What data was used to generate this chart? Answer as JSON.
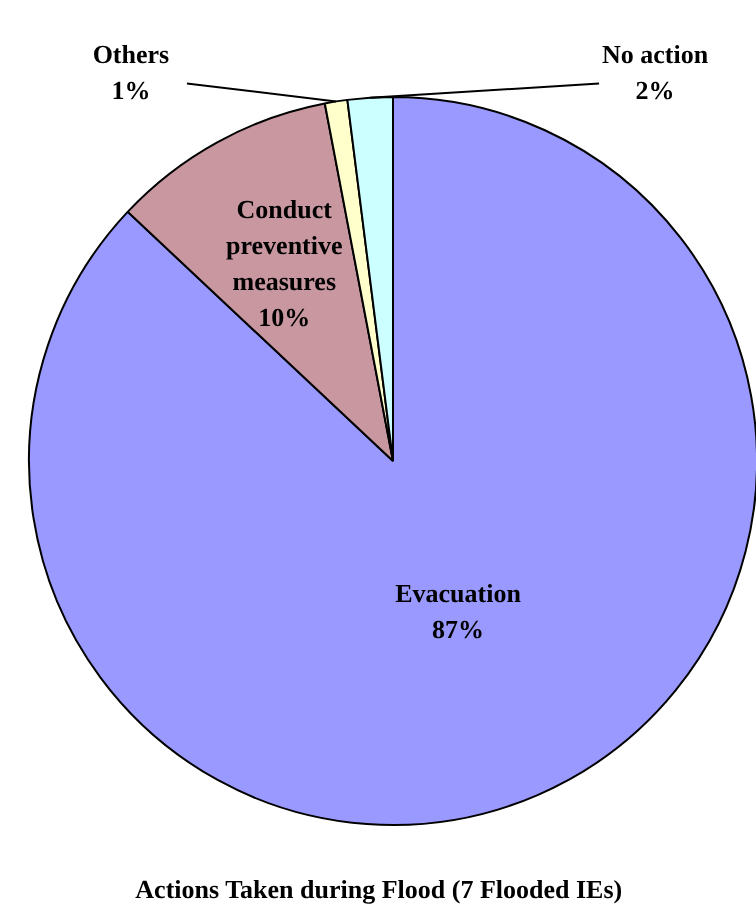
{
  "chart_data": {
    "type": "pie",
    "title": "Actions Taken during Flood (7 Flooded IEs)",
    "categories": [
      "Evacuation",
      "Conduct\npreventive\nmeasures",
      "Others",
      "No action"
    ],
    "values": [
      87,
      10,
      1,
      2
    ],
    "colors": [
      "#9999ff",
      "#c9979f",
      "#ffffcc",
      "#ccffff"
    ],
    "value_labels": [
      "87%",
      "10%",
      "1%",
      "2%"
    ]
  }
}
